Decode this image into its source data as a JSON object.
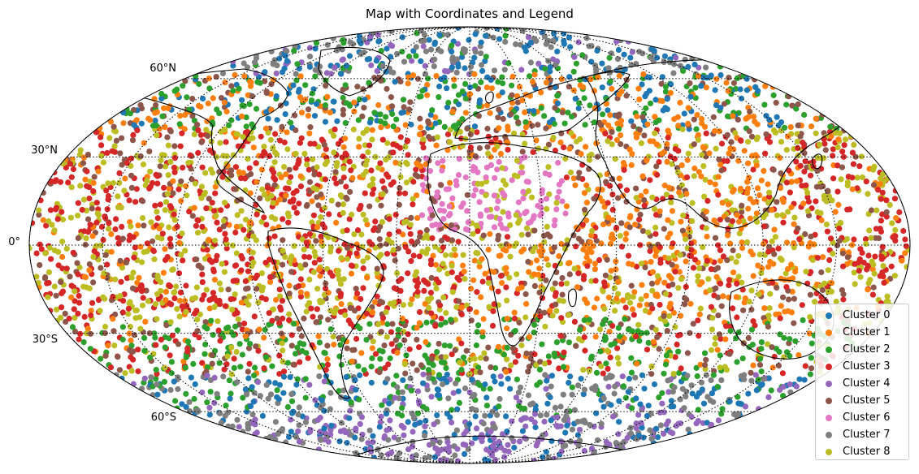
{
  "title": "Map with Coordinates and Legend",
  "lat_labels": [
    "60°N",
    "30°N",
    "0°",
    "30°S",
    "60°S"
  ],
  "legend": [
    {
      "label": "Cluster 0",
      "color": "#1f77b4"
    },
    {
      "label": "Cluster 1",
      "color": "#ff7f0e"
    },
    {
      "label": "Cluster 2",
      "color": "#2ca02c"
    },
    {
      "label": "Cluster 3",
      "color": "#d62728"
    },
    {
      "label": "Cluster 4",
      "color": "#9467bd"
    },
    {
      "label": "Cluster 5",
      "color": "#8c564b"
    },
    {
      "label": "Cluster 6",
      "color": "#e377c2"
    },
    {
      "label": "Cluster 7",
      "color": "#7f7f7f"
    },
    {
      "label": "Cluster 8",
      "color": "#bcbd22"
    }
  ],
  "projection": "mollweide",
  "graticule": {
    "style": "dotted",
    "lat_step_deg": 30,
    "lon_step_deg": 30
  }
}
